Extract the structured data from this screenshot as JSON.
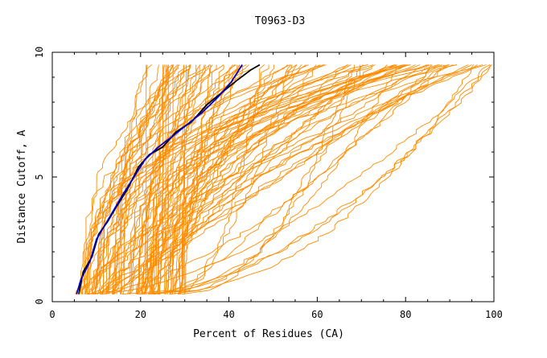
{
  "chart_data": {
    "type": "line",
    "title": "T0963-D3",
    "xlabel": "Percent of Residues (CA)",
    "ylabel": "Distance Cutoff, A",
    "xlim": [
      0,
      100
    ],
    "ylim": [
      0,
      10
    ],
    "x_ticks": [
      0,
      20,
      40,
      60,
      80,
      100
    ],
    "y_ticks": [
      0,
      5,
      10
    ],
    "grid": false,
    "legend": "none",
    "colors": {
      "background_models": "#ff8c00",
      "highlight_black": "#000000",
      "highlight_blue": "#0000cd",
      "frame": "#000000"
    },
    "background_model_count": 110,
    "series": [
      {
        "color": "#000000",
        "x": [
          6.0,
          7.0,
          9.0,
          10.5,
          12.5,
          14.5,
          17.0,
          19.5,
          22.0,
          25.0,
          28.0,
          31.5,
          35.0,
          38.5,
          42.0,
          45.0,
          47.0
        ],
        "y": [
          0.3,
          1.2,
          1.8,
          2.7,
          3.2,
          3.8,
          4.5,
          5.4,
          5.9,
          6.2,
          6.8,
          7.2,
          7.9,
          8.4,
          8.9,
          9.3,
          9.5
        ]
      },
      {
        "color": "#0000cd",
        "x": [
          5.5,
          6.5,
          8.5,
          10.0,
          12.0,
          14.0,
          16.0,
          18.5,
          21.0,
          24.0,
          27.0,
          30.5,
          34.0,
          37.5,
          40.5,
          43.0
        ],
        "y": [
          0.3,
          0.9,
          1.6,
          2.5,
          3.1,
          3.7,
          4.3,
          5.0,
          5.7,
          6.2,
          6.6,
          7.1,
          7.6,
          8.2,
          8.8,
          9.5
        ]
      }
    ]
  }
}
